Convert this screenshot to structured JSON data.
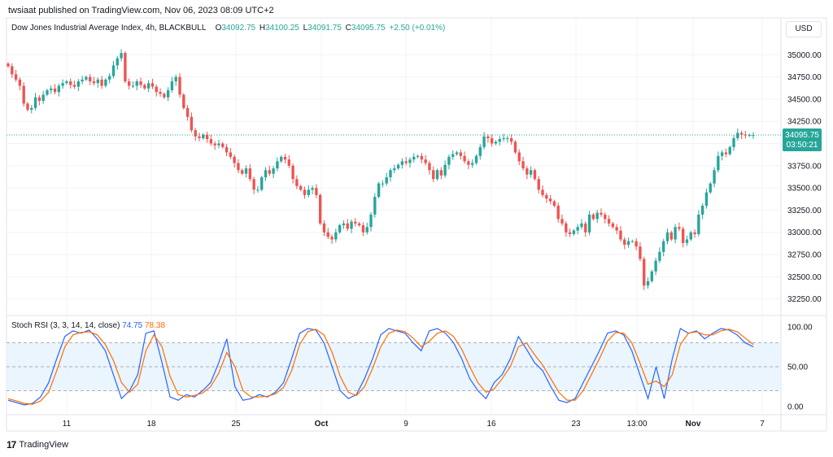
{
  "header": {
    "publisher": "twsiaat published on TradingView.com, Nov 06, 2023 08:09 UTC+2"
  },
  "legend": {
    "title": "Dow Jones Industrial Average Index, 4h, BLACKBULL",
    "o_label": "O",
    "o": "34092.75",
    "h_label": "H",
    "h": "34100.25",
    "l_label": "L",
    "l": "34091.75",
    "c_label": "C",
    "c": "34095.75",
    "change": "+2.50 (+0.01%)"
  },
  "currency_button": "USD",
  "price_tag": {
    "price": "34095.75",
    "countdown": "03:50:21"
  },
  "stoch_legend": {
    "title": "Stoch RSI (3, 3, 14, 14, close)",
    "k": "74.75",
    "d": "78.38"
  },
  "footer": {
    "brand": "TradingView",
    "logo": "17"
  },
  "colors": {
    "up": "#26a69a",
    "down": "#ef5350",
    "k_line": "#2962ff",
    "d_line": "#ff6d00",
    "band": "#e3f2fd",
    "grid": "#f0f3fa",
    "text": "#131722"
  },
  "chart_data": [
    {
      "type": "candlestick",
      "title": "Dow Jones Industrial Average Index, 4h, BLACKBULL",
      "ylim": [
        32100,
        35250
      ],
      "y_ticks": [
        35000,
        34750,
        34500,
        34250,
        34000,
        33750,
        33500,
        33250,
        33000,
        32750,
        32500,
        32250
      ],
      "y_tick_labels": [
        "35000.00",
        "34750.00",
        "34500.00",
        "34250.00",
        "34000.00",
        "33750.00",
        "33500.00",
        "33250.00",
        "33000.00",
        "32750.00",
        "32500.00",
        "32250.00"
      ],
      "x_tick_labels": [
        "11",
        "18",
        "25",
        "Oct",
        "9",
        "16",
        "23",
        "13:00",
        "Nov",
        "7"
      ],
      "last_price": 34095.75,
      "grid": true,
      "path": [
        [
          34870,
          34780,
          34720,
          34650,
          34450,
          34380,
          34400,
          34520,
          34480,
          34550,
          34600,
          34620,
          34580,
          34650,
          34680,
          34700,
          34660,
          34640,
          34700,
          34720,
          34750,
          34700,
          34680,
          34720,
          34650,
          34720,
          34760,
          34880,
          34960,
          35020,
          34700,
          34650
        ],
        [
          34650,
          34700,
          34660,
          34620,
          34680,
          34640,
          34580,
          34560,
          34520,
          34600,
          34700,
          34750,
          34550,
          34400,
          34300,
          34150,
          34080,
          34060,
          34100,
          34050,
          34000,
          33980,
          34000,
          33960,
          33900,
          33850,
          33780,
          33700,
          33660,
          33720,
          33600,
          33480
        ],
        [
          33480,
          33620,
          33700,
          33660,
          33720,
          33800,
          33850,
          33820,
          33750,
          33600,
          33520,
          33480,
          33420,
          33480,
          33500,
          33420,
          33100,
          33000,
          32950,
          32920,
          33000,
          33080,
          33100,
          33040,
          33120,
          33100,
          33080,
          33000,
          33060,
          33200,
          33400,
          33550
        ],
        [
          33550,
          33620,
          33700,
          33720,
          33760,
          33800,
          33780,
          33820,
          33850,
          33860,
          33820,
          33780,
          33700,
          33600,
          33700,
          33640,
          33760,
          33850,
          33880,
          33900,
          33860,
          33800,
          33760,
          33780,
          33860,
          33960,
          34080,
          34060,
          34000,
          34020,
          34050,
          34060
        ],
        [
          34060,
          34020,
          33900,
          33800,
          33720,
          33650,
          33700,
          33600,
          33480,
          33420,
          33380,
          33350,
          33300,
          33150,
          33100,
          33000,
          32980,
          33020,
          33060,
          33100,
          33000,
          33200,
          33150,
          33220,
          33200,
          33150,
          33100,
          33060,
          33020,
          32920,
          32860,
          32900
        ],
        [
          32900,
          32840,
          32700,
          32400,
          32450,
          32560,
          32680,
          32780,
          32900,
          33000,
          32920,
          33060,
          33040,
          32880,
          32920,
          33000,
          32980,
          33200,
          33300,
          33450,
          33550,
          33700,
          33860,
          33900,
          33880,
          33960,
          34060,
          34120,
          34100,
          34092,
          34095,
          34095
        ]
      ]
    },
    {
      "type": "line",
      "title": "Stoch RSI (3, 3, 14, 14, close)",
      "ylim": [
        0,
        100
      ],
      "y_ticks": [
        100,
        50,
        0
      ],
      "y_tick_labels": [
        "100.00",
        "50.00",
        "0.00"
      ],
      "bands": [
        20,
        50,
        80
      ],
      "series": [
        {
          "name": "%K",
          "values": [
            8,
            5,
            2,
            4,
            12,
            30,
            60,
            88,
            95,
            92,
            96,
            85,
            70,
            40,
            10,
            20,
            40,
            92,
            95,
            55,
            12,
            8,
            15,
            12,
            20,
            30,
            55,
            85,
            25,
            8,
            10,
            15,
            12,
            18,
            30,
            60,
            92,
            98,
            96,
            80,
            50,
            20,
            10,
            15,
            35,
            60,
            90,
            98,
            95,
            92,
            80,
            70,
            95,
            98,
            92,
            80,
            60,
            35,
            20,
            10,
            30,
            40,
            60,
            88,
            72,
            55,
            45,
            25,
            8,
            5,
            10,
            30,
            50,
            70,
            92,
            95,
            90,
            70,
            40,
            10,
            50,
            10,
            60,
            98,
            92,
            95,
            85,
            92,
            98,
            96,
            90,
            80,
            75
          ]
        },
        {
          "name": "%D",
          "values": [
            10,
            7,
            4,
            3,
            7,
            18,
            45,
            75,
            90,
            93,
            94,
            90,
            78,
            58,
            30,
            18,
            28,
            70,
            90,
            75,
            38,
            15,
            12,
            14,
            17,
            25,
            42,
            68,
            50,
            20,
            12,
            12,
            13,
            16,
            24,
            45,
            78,
            94,
            97,
            90,
            68,
            38,
            18,
            14,
            25,
            48,
            75,
            92,
            96,
            94,
            86,
            75,
            82,
            92,
            95,
            88,
            72,
            50,
            30,
            18,
            22,
            35,
            50,
            75,
            80,
            65,
            52,
            35,
            18,
            8,
            8,
            20,
            40,
            60,
            82,
            93,
            92,
            80,
            55,
            28,
            32,
            25,
            40,
            78,
            92,
            94,
            90,
            90,
            95,
            97,
            94,
            86,
            78
          ]
        }
      ]
    }
  ]
}
